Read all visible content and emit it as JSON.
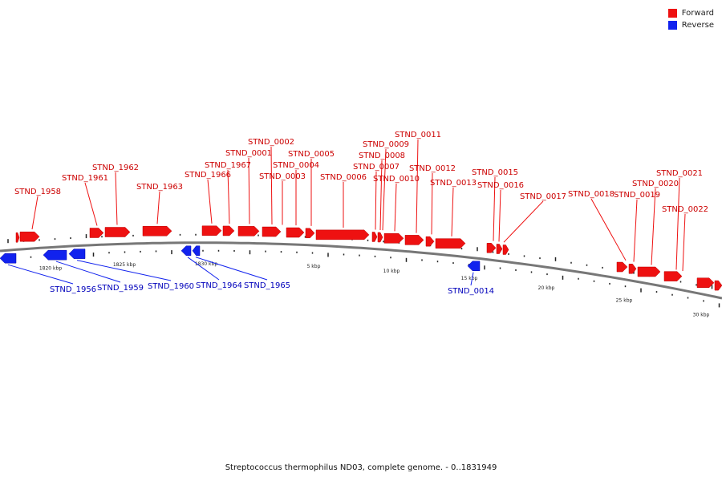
{
  "legend": {
    "items": [
      {
        "label": "Forward",
        "color": "#ee1111"
      },
      {
        "label": "Reverse",
        "color": "#1122ee"
      }
    ]
  },
  "caption": "Streptococcus thermophilus ND03, complete genome. - 0..1831949",
  "colors": {
    "forward": "#ee1111",
    "reverse": "#1122ee",
    "forward_label": "#cc0000",
    "reverse_label": "#0000bb",
    "backbone": "#777777"
  },
  "genes_forward": [
    {
      "name": "STND_1958"
    },
    {
      "name": "STND_1961"
    },
    {
      "name": "STND_1962"
    },
    {
      "name": "STND_1963"
    },
    {
      "name": "STND_1966"
    },
    {
      "name": "STND_1967"
    },
    {
      "name": "STND_0001"
    },
    {
      "name": "STND_0002"
    },
    {
      "name": "STND_0003"
    },
    {
      "name": "STND_0004"
    },
    {
      "name": "STND_0005"
    },
    {
      "name": "STND_0006"
    },
    {
      "name": "STND_0007"
    },
    {
      "name": "STND_0008"
    },
    {
      "name": "STND_0009"
    },
    {
      "name": "STND_0010"
    },
    {
      "name": "STND_0011"
    },
    {
      "name": "STND_0012"
    },
    {
      "name": "STND_0013"
    },
    {
      "name": "STND_0015"
    },
    {
      "name": "STND_0016"
    },
    {
      "name": "STND_0017"
    },
    {
      "name": "STND_0018"
    },
    {
      "name": "STND_0019"
    },
    {
      "name": "STND_0020"
    },
    {
      "name": "STND_0021"
    },
    {
      "name": "STND_0022"
    }
  ],
  "genes_reverse": [
    {
      "name": "STND_1956"
    },
    {
      "name": "STND_1959"
    },
    {
      "name": "STND_1960"
    },
    {
      "name": "STND_1964"
    },
    {
      "name": "STND_1965"
    },
    {
      "name": "STND_0014"
    }
  ],
  "scale_labels": [
    "1820 kbp",
    "1825 kbp",
    "1830 kbp",
    "5 kbp",
    "10 kbp",
    "15 kbp",
    "20 kbp",
    "25 kbp",
    "30 kbp"
  ]
}
